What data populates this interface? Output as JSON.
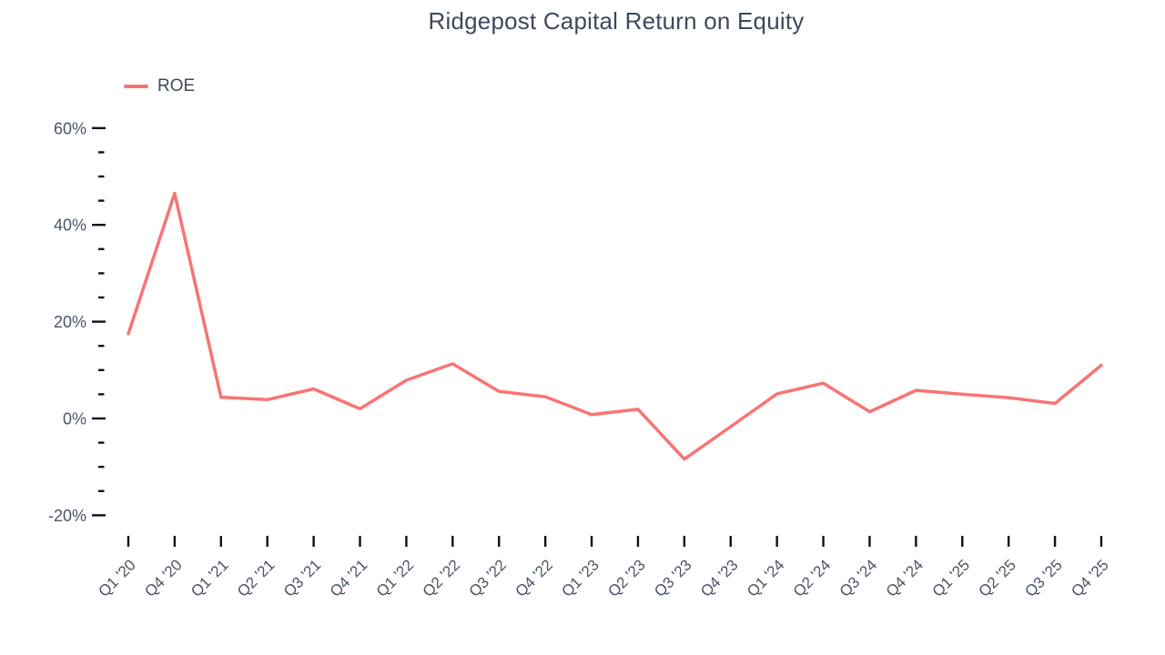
{
  "header": {
    "title": "Ridgepost Capital Return on Equity"
  },
  "legend": {
    "items": [
      {
        "label": "ROE",
        "color": "#f87474"
      }
    ]
  },
  "colors": {
    "line": "#f87474",
    "title_text": "#3d4a5c",
    "axis_label_text": "#4a5568",
    "tick_mark": "#101418"
  },
  "chart_data": {
    "type": "line",
    "title": "Ridgepost Capital Return on Equity",
    "xlabel": "",
    "ylabel": "",
    "grid": false,
    "legend_position": "top-left",
    "categories": [
      "Q1 '20",
      "Q4 '20",
      "Q1 '21",
      "Q2 '21",
      "Q3 '21",
      "Q4 '21",
      "Q1 '22",
      "Q2 '22",
      "Q3 '22",
      "Q4 '22",
      "Q1 '23",
      "Q2 '23",
      "Q3 '23",
      "Q4 '23",
      "Q1 '24",
      "Q2 '24",
      "Q3 '24",
      "Q4 '24",
      "Q1 '25",
      "Q2 '25",
      "Q3 '25",
      "Q4 '25"
    ],
    "series": [
      {
        "name": "ROE",
        "color": "#f87474",
        "unit": "%",
        "values": [
          17.5,
          46.5,
          4.4,
          3.9,
          6.1,
          2.0,
          7.9,
          11.3,
          5.6,
          4.5,
          0.8,
          1.9,
          -8.4,
          -1.7,
          5.1,
          7.3,
          1.4,
          5.8,
          5.0,
          4.3,
          3.1,
          11.0
        ]
      }
    ],
    "y_axis": {
      "tick_values": [
        60,
        40,
        20,
        0,
        -20
      ],
      "tick_labels": [
        "60%",
        "40%",
        "20%",
        "0%",
        "-20%"
      ],
      "minor_step": 5,
      "minor_range": [
        -20,
        60
      ],
      "ylim": [
        -25,
        65
      ]
    }
  }
}
